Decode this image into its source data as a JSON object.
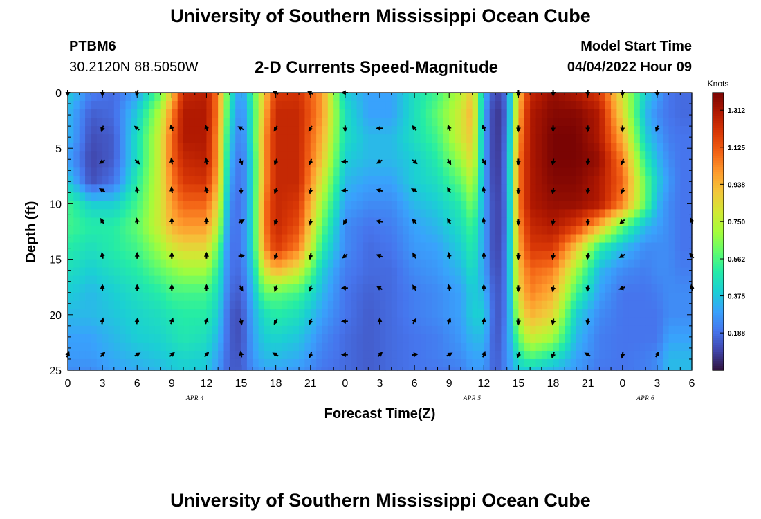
{
  "header": {
    "title": "University of Southern Mississippi Ocean Cube",
    "station_id": "PTBM6",
    "coordinates": "30.2120N  88.5050W",
    "plot_title": "2-D Currents Speed-Magnitude",
    "model_start_label": "Model Start Time",
    "model_start_value": "04/04/2022 Hour 09"
  },
  "footer": {
    "title": "University of Southern Mississippi Ocean Cube"
  },
  "chart_data": {
    "type": "heatmap",
    "title": "2-D Currents Speed-Magnitude",
    "xlabel": "Forecast Time(Z)",
    "ylabel": "Depth (ft)",
    "x_tick_labels": [
      "0",
      "3",
      "6",
      "9",
      "12",
      "15",
      "18",
      "21",
      "0",
      "3",
      "6",
      "9",
      "12",
      "15",
      "18",
      "21",
      "0",
      "3",
      "6"
    ],
    "x_range_hours": [
      0,
      54
    ],
    "date_labels": [
      {
        "hour": 11,
        "label": "APR 4"
      },
      {
        "hour": 35,
        "label": "APR 5"
      },
      {
        "hour": 50,
        "label": "APR 6"
      }
    ],
    "y_range_ft": [
      0,
      25
    ],
    "y_ticks": [
      0,
      5,
      10,
      15,
      20,
      25
    ],
    "colorbar": {
      "unit": "Knots",
      "ticks": [
        0.188,
        0.375,
        0.562,
        0.75,
        0.938,
        1.125,
        1.312
      ],
      "range": [
        0,
        1.4
      ],
      "colors": [
        "#30123b",
        "#4145ab",
        "#4675ed",
        "#39a2fc",
        "#1bcfd4",
        "#24eca6",
        "#61fc6c",
        "#a4fc3b",
        "#d1e834",
        "#f3c63a",
        "#fe9b2d",
        "#f36315",
        "#d93806",
        "#b11901",
        "#7a0403"
      ]
    },
    "speed_knots": {
      "time_hours": [
        0,
        2,
        4,
        6,
        8,
        9,
        10,
        12,
        13,
        14,
        15,
        16,
        17,
        18,
        20,
        22,
        24,
        26,
        28,
        30,
        32,
        34,
        35,
        36,
        37,
        38,
        39,
        40,
        42,
        44,
        46,
        48,
        50,
        51,
        52,
        53,
        54
      ],
      "depth_ft": [
        0,
        2,
        4,
        6,
        8,
        10,
        12,
        14,
        16,
        18,
        20,
        22,
        24,
        25
      ],
      "values": [
        [
          0.4,
          0.22,
          0.18,
          0.3,
          0.6,
          0.9,
          1.25,
          1.28,
          1.05,
          0.5,
          0.25,
          0.55,
          0.9,
          1.2,
          1.22,
          1.0,
          0.4,
          0.3,
          0.3,
          0.45,
          0.55,
          0.75,
          0.9,
          0.35,
          0.08,
          0.2,
          0.9,
          1.25,
          1.35,
          1.3,
          1.2,
          0.8,
          0.4,
          0.3,
          0.2,
          0.18,
          0.18
        ],
        [
          0.35,
          0.15,
          0.18,
          0.4,
          0.75,
          1.05,
          1.3,
          1.3,
          1.05,
          0.45,
          0.22,
          0.5,
          0.95,
          1.25,
          1.25,
          1.0,
          0.45,
          0.3,
          0.3,
          0.45,
          0.6,
          0.8,
          0.95,
          0.3,
          0.05,
          0.18,
          0.95,
          1.3,
          1.38,
          1.38,
          1.3,
          0.85,
          0.35,
          0.25,
          0.2,
          0.18,
          0.18
        ],
        [
          0.35,
          0.12,
          0.15,
          0.45,
          0.8,
          1.1,
          1.3,
          1.3,
          1.0,
          0.4,
          0.2,
          0.5,
          1.0,
          1.25,
          1.25,
          0.95,
          0.45,
          0.35,
          0.35,
          0.45,
          0.55,
          0.8,
          0.9,
          0.3,
          0.05,
          0.2,
          1.0,
          1.3,
          1.4,
          1.4,
          1.3,
          0.95,
          0.4,
          0.3,
          0.22,
          0.2,
          0.2
        ],
        [
          0.3,
          0.1,
          0.15,
          0.45,
          0.8,
          1.1,
          1.25,
          1.28,
          1.0,
          0.35,
          0.18,
          0.45,
          1.0,
          1.25,
          1.25,
          0.9,
          0.4,
          0.35,
          0.35,
          0.4,
          0.5,
          0.7,
          0.85,
          0.3,
          0.05,
          0.22,
          1.05,
          1.3,
          1.4,
          1.4,
          1.35,
          1.05,
          0.5,
          0.35,
          0.25,
          0.2,
          0.2
        ],
        [
          0.4,
          0.12,
          0.2,
          0.5,
          0.8,
          1.05,
          1.2,
          1.22,
          0.95,
          0.3,
          0.18,
          0.45,
          1.0,
          1.25,
          1.25,
          0.8,
          0.35,
          0.3,
          0.3,
          0.4,
          0.45,
          0.6,
          0.75,
          0.3,
          0.06,
          0.22,
          1.05,
          1.3,
          1.38,
          1.38,
          1.3,
          1.1,
          0.6,
          0.4,
          0.28,
          0.2,
          0.2
        ],
        [
          0.55,
          0.4,
          0.4,
          0.55,
          0.8,
          1.0,
          1.1,
          1.1,
          0.85,
          0.25,
          0.18,
          0.45,
          1.05,
          1.25,
          1.2,
          0.7,
          0.3,
          0.25,
          0.25,
          0.35,
          0.4,
          0.5,
          0.65,
          0.3,
          0.08,
          0.2,
          1.05,
          1.3,
          1.35,
          1.35,
          1.3,
          1.05,
          0.6,
          0.35,
          0.25,
          0.2,
          0.2
        ],
        [
          0.55,
          0.5,
          0.5,
          0.6,
          0.8,
          0.95,
          1.0,
          1.0,
          0.75,
          0.22,
          0.2,
          0.45,
          1.05,
          1.25,
          1.15,
          0.6,
          0.25,
          0.2,
          0.22,
          0.3,
          0.35,
          0.45,
          0.55,
          0.3,
          0.08,
          0.2,
          1.0,
          1.25,
          1.3,
          1.2,
          0.95,
          0.6,
          0.35,
          0.3,
          0.25,
          0.2,
          0.2
        ],
        [
          0.5,
          0.45,
          0.5,
          0.55,
          0.7,
          0.8,
          0.85,
          0.85,
          0.6,
          0.2,
          0.2,
          0.45,
          1.0,
          1.2,
          1.05,
          0.5,
          0.25,
          0.18,
          0.2,
          0.28,
          0.3,
          0.4,
          0.5,
          0.3,
          0.08,
          0.22,
          0.95,
          1.2,
          1.2,
          0.9,
          0.5,
          0.35,
          0.25,
          0.25,
          0.25,
          0.2,
          0.2
        ],
        [
          0.45,
          0.4,
          0.45,
          0.5,
          0.6,
          0.65,
          0.7,
          0.7,
          0.5,
          0.2,
          0.18,
          0.4,
          0.8,
          0.95,
          0.8,
          0.4,
          0.22,
          0.18,
          0.18,
          0.25,
          0.28,
          0.35,
          0.45,
          0.3,
          0.1,
          0.22,
          0.9,
          1.1,
          1.05,
          0.7,
          0.35,
          0.25,
          0.22,
          0.25,
          0.25,
          0.22,
          0.22
        ],
        [
          0.4,
          0.35,
          0.4,
          0.45,
          0.5,
          0.55,
          0.55,
          0.55,
          0.45,
          0.18,
          0.15,
          0.35,
          0.6,
          0.6,
          0.55,
          0.35,
          0.2,
          0.16,
          0.18,
          0.22,
          0.25,
          0.3,
          0.4,
          0.35,
          0.12,
          0.22,
          0.85,
          1.05,
          0.95,
          0.55,
          0.3,
          0.2,
          0.2,
          0.22,
          0.25,
          0.25,
          0.25
        ],
        [
          0.35,
          0.35,
          0.38,
          0.42,
          0.45,
          0.48,
          0.5,
          0.5,
          0.4,
          0.15,
          0.12,
          0.32,
          0.45,
          0.5,
          0.45,
          0.3,
          0.2,
          0.15,
          0.18,
          0.22,
          0.25,
          0.3,
          0.4,
          0.4,
          0.12,
          0.22,
          0.75,
          0.95,
          0.85,
          0.4,
          0.25,
          0.2,
          0.2,
          0.2,
          0.25,
          0.25,
          0.25
        ],
        [
          0.3,
          0.3,
          0.35,
          0.4,
          0.42,
          0.45,
          0.48,
          0.45,
          0.35,
          0.15,
          0.12,
          0.3,
          0.4,
          0.42,
          0.38,
          0.25,
          0.18,
          0.15,
          0.18,
          0.2,
          0.22,
          0.28,
          0.35,
          0.35,
          0.12,
          0.25,
          0.6,
          0.8,
          0.7,
          0.35,
          0.22,
          0.2,
          0.2,
          0.2,
          0.3,
          0.3,
          0.3
        ],
        [
          0.28,
          0.28,
          0.32,
          0.35,
          0.38,
          0.4,
          0.42,
          0.4,
          0.3,
          0.15,
          0.14,
          0.28,
          0.35,
          0.35,
          0.32,
          0.22,
          0.18,
          0.15,
          0.18,
          0.2,
          0.22,
          0.25,
          0.3,
          0.3,
          0.14,
          0.25,
          0.45,
          0.55,
          0.45,
          0.3,
          0.22,
          0.2,
          0.22,
          0.25,
          0.35,
          0.35,
          0.35
        ],
        [
          0.25,
          0.25,
          0.3,
          0.32,
          0.35,
          0.38,
          0.4,
          0.38,
          0.28,
          0.15,
          0.15,
          0.25,
          0.3,
          0.3,
          0.28,
          0.2,
          0.18,
          0.15,
          0.18,
          0.2,
          0.2,
          0.22,
          0.28,
          0.28,
          0.14,
          0.25,
          0.4,
          0.4,
          0.35,
          0.28,
          0.2,
          0.2,
          0.22,
          0.25,
          0.35,
          0.35,
          0.35
        ]
      ]
    },
    "vectors": {
      "comment": "direction each arrow points, degrees clockwise from up (north); rows = depth_ft, cols = time_hours",
      "time_hours": [
        0,
        3,
        6,
        9,
        12,
        15,
        18,
        21,
        24,
        27,
        30,
        33,
        36,
        39,
        42,
        45,
        48,
        51,
        54
      ],
      "depth_ft": [
        0,
        3.2,
        6.2,
        8.8,
        11.6,
        14.7,
        17.6,
        20.6,
        23.6
      ],
      "directions_deg": [
        [
          180,
          180,
          200,
          null,
          null,
          null,
          300,
          300,
          270,
          null,
          null,
          null,
          null,
          180,
          180,
          180,
          180,
          180,
          null
        ],
        [
          null,
          200,
          310,
          340,
          340,
          300,
          210,
          210,
          180,
          270,
          320,
          340,
          340,
          180,
          180,
          180,
          180,
          200,
          null
        ],
        [
          null,
          240,
          135,
          350,
          350,
          160,
          200,
          200,
          270,
          240,
          130,
          150,
          150,
          180,
          190,
          190,
          200,
          null,
          null
        ],
        [
          null,
          300,
          350,
          350,
          350,
          180,
          200,
          190,
          270,
          285,
          300,
          330,
          350,
          180,
          190,
          190,
          200,
          null,
          null
        ],
        [
          null,
          330,
          350,
          0,
          0,
          60,
          200,
          190,
          210,
          280,
          320,
          330,
          350,
          180,
          190,
          180,
          230,
          null,
          340
        ],
        [
          null,
          350,
          0,
          0,
          0,
          80,
          200,
          190,
          230,
          290,
          330,
          350,
          0,
          180,
          190,
          190,
          240,
          null,
          320
        ],
        [
          null,
          0,
          0,
          0,
          0,
          150,
          200,
          200,
          270,
          300,
          330,
          350,
          0,
          180,
          190,
          190,
          250,
          null,
          350
        ],
        [
          null,
          10,
          10,
          20,
          20,
          170,
          210,
          200,
          270,
          0,
          30,
          20,
          10,
          180,
          190,
          190,
          null,
          null,
          null
        ],
        [
          20,
          45,
          60,
          50,
          40,
          350,
          300,
          200,
          270,
          45,
          80,
          60,
          20,
          200,
          200,
          300,
          190,
          30,
          null
        ]
      ]
    }
  }
}
